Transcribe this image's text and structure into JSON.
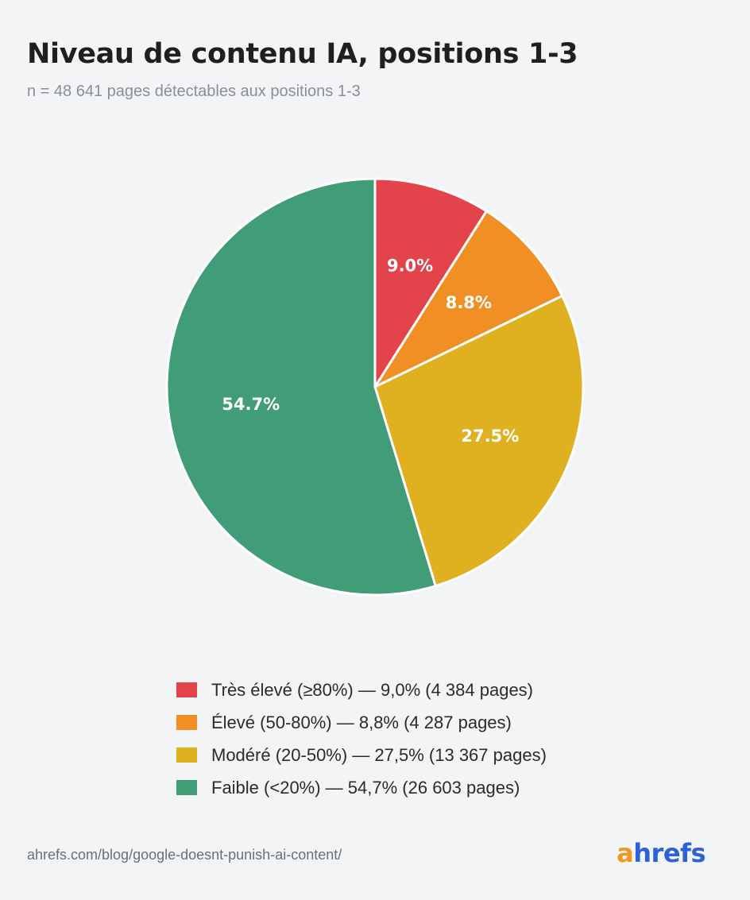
{
  "title": "Niveau de contenu IA, positions 1-3",
  "subtitle": "n = 48 641 pages détectables aux positions 1-3",
  "chart_data": {
    "type": "pie",
    "title": "Niveau de contenu IA, positions 1-3",
    "subtitle": "n = 48 641 pages détectables aux positions 1-3",
    "slices": [
      {
        "label": "9.0%",
        "value": 9.0,
        "color": "#e3434b",
        "legend": "Très élevé (≥80%) — 9,0% (4 384 pages)"
      },
      {
        "label": "8.8%",
        "value": 8.8,
        "color": "#f08f23",
        "legend": "Élevé (50-80%) — 8,8% (4 287 pages)"
      },
      {
        "label": "27.5%",
        "value": 27.5,
        "color": "#dfb020",
        "legend": "Modéré (20-50%) — 27,5% (13 367 pages)"
      },
      {
        "label": "54.7%",
        "value": 54.7,
        "color": "#419c78",
        "legend": "Faible (<20%) — 54,7% (26 603 pages)"
      }
    ],
    "legend_position": "bottom"
  },
  "footer": {
    "url": "ahrefs.com/blog/google-doesnt-punish-ai-content/",
    "logo_a": "a",
    "logo_rest": "hrefs"
  }
}
